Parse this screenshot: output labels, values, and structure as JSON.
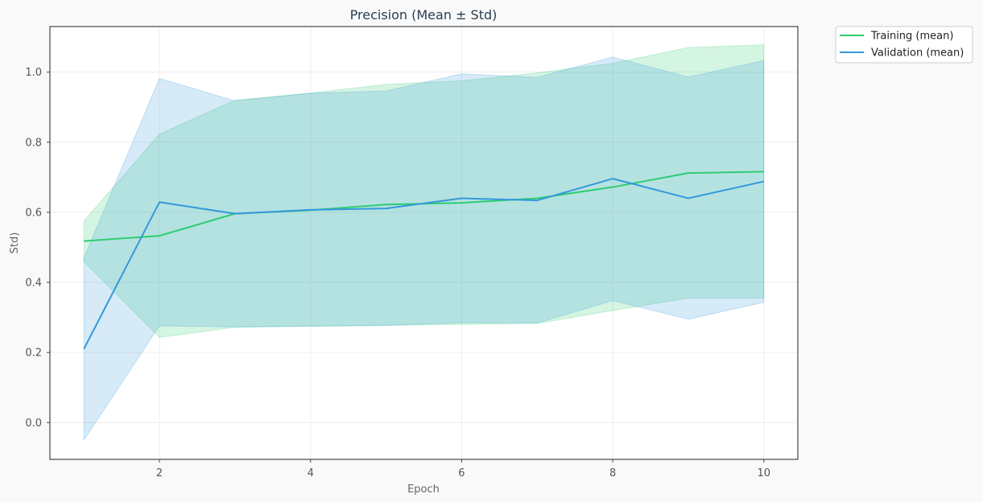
{
  "chart_data": {
    "type": "line",
    "title": "Precision (Mean ± Std)",
    "xlabel": "Epoch",
    "ylabel": "Std)",
    "xlim": [
      0.55,
      10.45
    ],
    "ylim": [
      -0.105,
      1.13
    ],
    "xticks": [
      2,
      4,
      6,
      8,
      10
    ],
    "yticks": [
      0.0,
      0.2,
      0.4,
      0.6,
      0.8,
      1.0
    ],
    "ytick_labels": [
      "0.0",
      "0.2",
      "0.4",
      "0.6",
      "0.8",
      "1.0"
    ],
    "grid": true,
    "legend_position": "outside-top-right",
    "x": [
      1,
      2,
      3,
      4,
      5,
      6,
      7,
      8,
      9,
      10
    ],
    "series": [
      {
        "name": "Training (mean)",
        "color": "#2ecc71",
        "mean": [
          0.518,
          0.533,
          0.596,
          0.606,
          0.622,
          0.627,
          0.64,
          0.672,
          0.712,
          0.716
        ],
        "upper": [
          0.575,
          0.823,
          0.92,
          0.94,
          0.965,
          0.975,
          0.998,
          1.025,
          1.07,
          1.078
        ],
        "lower": [
          0.46,
          0.243,
          0.272,
          0.275,
          0.278,
          0.28,
          0.283,
          0.32,
          0.355,
          0.355
        ]
      },
      {
        "name": "Validation (mean)",
        "color": "#3498db",
        "mean": [
          0.21,
          0.629,
          0.596,
          0.607,
          0.611,
          0.64,
          0.634,
          0.696,
          0.64,
          0.688
        ],
        "upper": [
          0.47,
          0.982,
          0.918,
          0.94,
          0.946,
          0.995,
          0.985,
          1.043,
          0.986,
          1.033
        ],
        "lower": [
          -0.05,
          0.276,
          0.273,
          0.275,
          0.277,
          0.285,
          0.284,
          0.348,
          0.295,
          0.343
        ]
      }
    ]
  }
}
